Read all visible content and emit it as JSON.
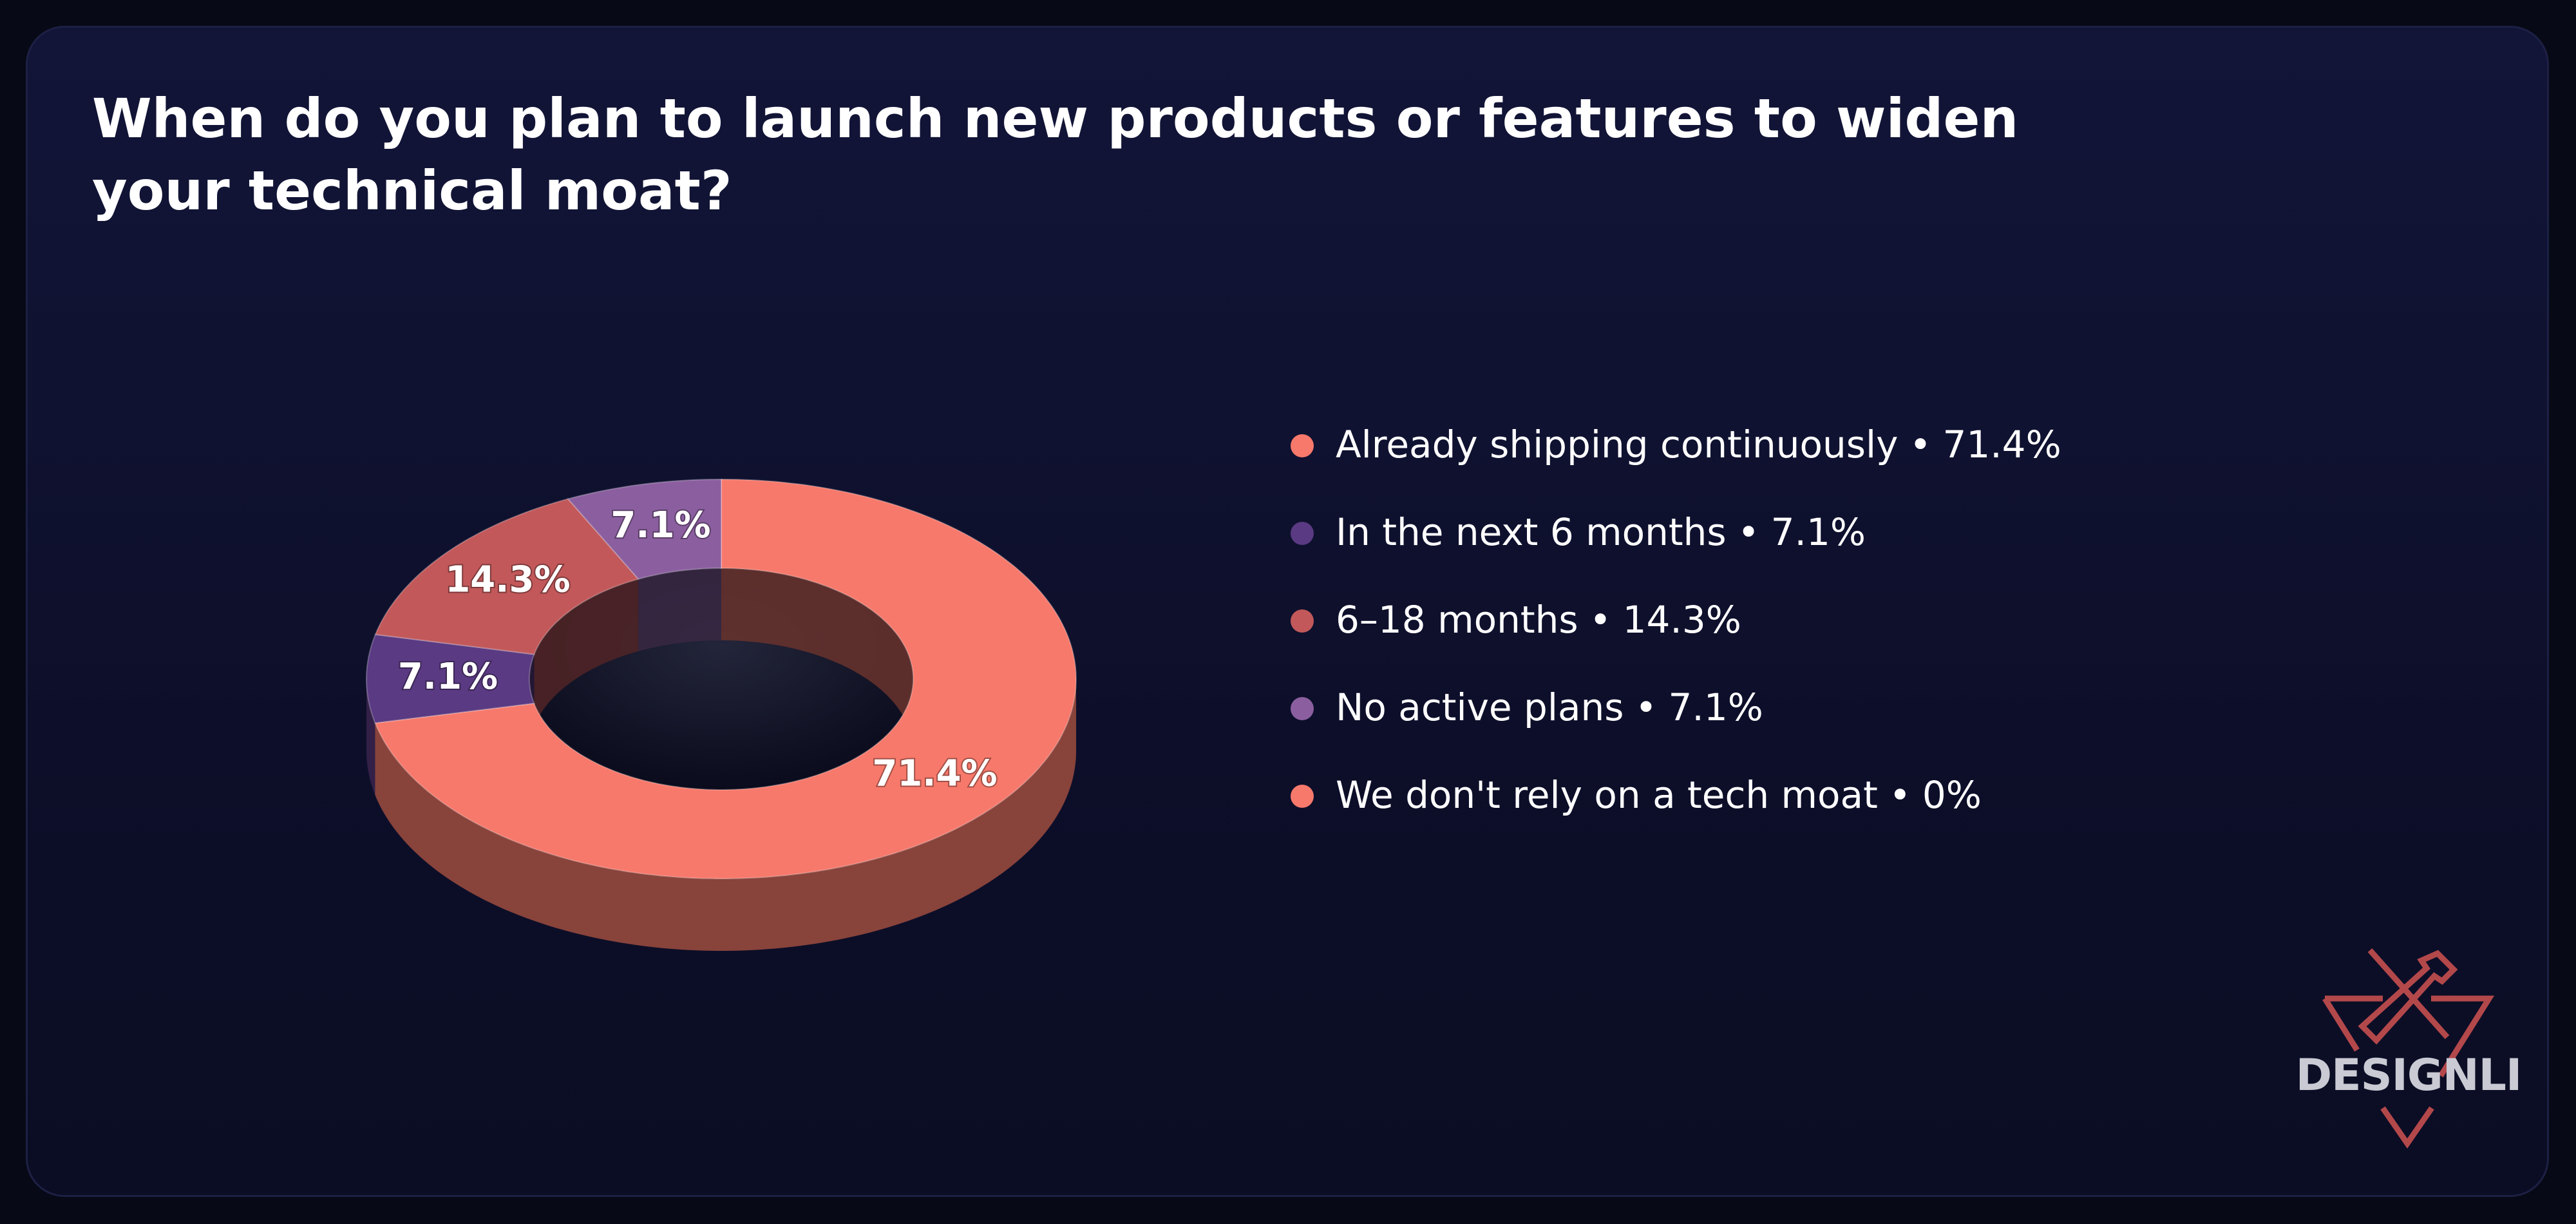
{
  "chart_data": {
    "type": "donut",
    "title": "When do you plan to launch new products or features to widen your technical moat?",
    "categories": [
      "Already shipping continuously",
      "In the next 6 months",
      "6–18 months",
      "No active plans",
      "We don't rely on a tech moat"
    ],
    "values": [
      71.4,
      7.1,
      14.3,
      7.1,
      0
    ],
    "value_labels": [
      "71.4%",
      "7.1%",
      "14.3%",
      "7.1%",
      "0%"
    ],
    "colors": [
      "#f7796b",
      "#5a3a82",
      "#c2585a",
      "#8b5f9f",
      "#f7796b"
    ],
    "legend_separator": "•",
    "legend": "right"
  },
  "logo": "DESIGNLI"
}
